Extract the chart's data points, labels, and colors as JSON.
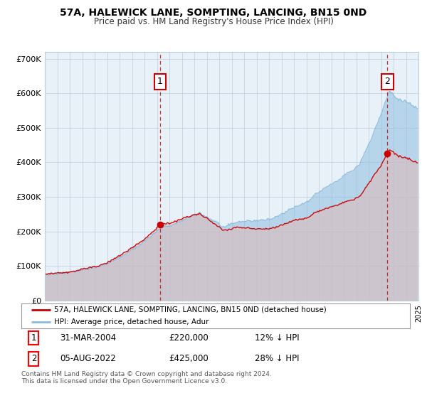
{
  "title1": "57A, HALEWICK LANE, SOMPTING, LANCING, BN15 0ND",
  "title2": "Price paid vs. HM Land Registry's House Price Index (HPI)",
  "legend_red": "57A, HALEWICK LANE, SOMPTING, LANCING, BN15 0ND (detached house)",
  "legend_blue": "HPI: Average price, detached house, Adur",
  "sale1_date_idx": 111,
  "sale1_value": 220000,
  "sale2_date_idx": 330,
  "sale2_value": 425000,
  "footer": "Contains HM Land Registry data © Crown copyright and database right 2024.\nThis data is licensed under the Open Government Licence v3.0.",
  "ylim": [
    0,
    720000
  ],
  "yticks": [
    0,
    100000,
    200000,
    300000,
    400000,
    500000,
    600000,
    700000
  ],
  "ytick_labels": [
    "£0",
    "£100K",
    "£200K",
    "£300K",
    "£400K",
    "£500K",
    "£600K",
    "£700K"
  ],
  "fig_bg": "#ffffff",
  "plot_bg": "#e8f0f8",
  "red_color": "#cc0000",
  "blue_color": "#88bbdd",
  "grid_color": "#bbccdd",
  "ann_box_color": "#cc0000"
}
